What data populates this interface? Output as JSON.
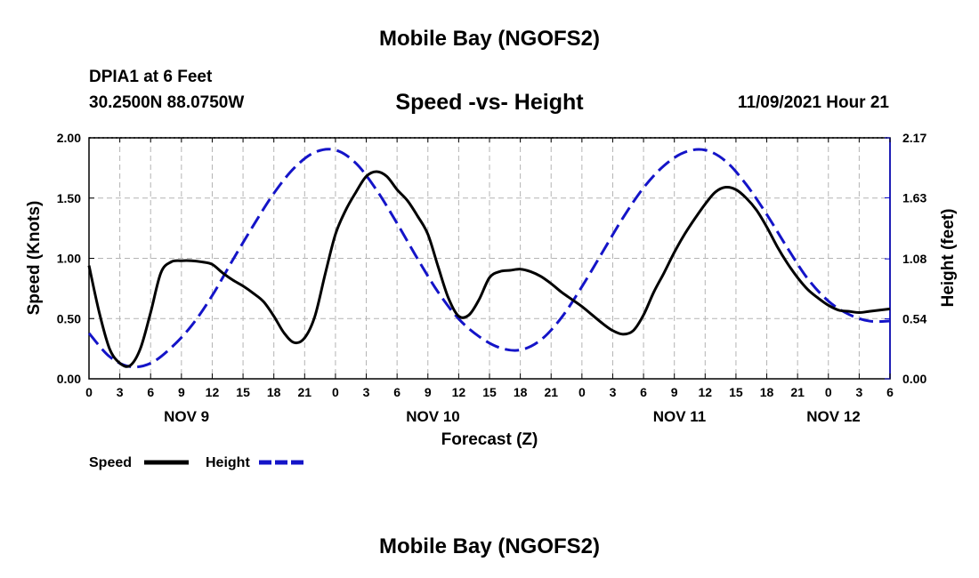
{
  "header": {
    "title": "Mobile Bay (NGOFS2)",
    "station": "DPIA1 at 6 Feet",
    "coords": "30.2500N  88.0750W",
    "timestamp": "11/09/2021 Hour 21",
    "bottom_title": "Mobile Bay (NGOFS2)"
  },
  "chart_data": {
    "type": "line",
    "title": "Speed -vs- Height",
    "xlabel": "Forecast (Z)",
    "ylabel": "Speed (Knots)",
    "y2label": "Height (feet)",
    "xlim": [
      0,
      78
    ],
    "ylim": [
      0,
      2.0
    ],
    "y2lim": [
      0,
      2.17
    ],
    "grid": true,
    "x_tick_values": [
      0,
      3,
      6,
      9,
      12,
      15,
      18,
      21,
      24,
      27,
      30,
      33,
      36,
      39,
      42,
      45,
      48,
      51,
      54,
      57,
      60,
      63,
      66,
      69,
      72,
      75,
      78
    ],
    "x_tick_labels": [
      "0",
      "3",
      "6",
      "9",
      "12",
      "15",
      "18",
      "21",
      "0",
      "3",
      "6",
      "9",
      "12",
      "15",
      "18",
      "21",
      "0",
      "3",
      "6",
      "9",
      "12",
      "15",
      "18",
      "21",
      "0",
      "3",
      "6"
    ],
    "day_labels": [
      {
        "label": "NOV 9",
        "x": 9.5
      },
      {
        "label": "NOV 10",
        "x": 33.5
      },
      {
        "label": "NOV 11",
        "x": 57.5
      },
      {
        "label": "NOV 12",
        "x": 72.5
      }
    ],
    "y_tick_values": [
      0,
      0.5,
      1.0,
      1.5,
      2.0
    ],
    "y_tick_labels": [
      "0.00",
      "0.50",
      "1.00",
      "1.50",
      "2.00"
    ],
    "y2_tick_values": [
      0,
      0.54,
      1.08,
      1.63,
      2.17
    ],
    "y2_tick_labels": [
      "0.00",
      "0.54",
      "1.08",
      "1.63",
      "2.17"
    ],
    "legend_location": "bottom-left",
    "series": [
      {
        "name": "Speed",
        "axis": "left",
        "color": "#000000",
        "style": "solid",
        "x": [
          0,
          1,
          2,
          3,
          4,
          5,
          6,
          7,
          8,
          9,
          10,
          11,
          12,
          13,
          14,
          15,
          16,
          17,
          18,
          19,
          20,
          21,
          22,
          23,
          24,
          25,
          26,
          27,
          28,
          29,
          30,
          31,
          32,
          33,
          34,
          35,
          36,
          37,
          38,
          39,
          40,
          41,
          42,
          43,
          44,
          45,
          46,
          47,
          48,
          49,
          50,
          51,
          52,
          53,
          54,
          55,
          56,
          57,
          58,
          59,
          60,
          61,
          62,
          63,
          64,
          65,
          66,
          67,
          68,
          69,
          70,
          71,
          72,
          73,
          74,
          75,
          76,
          77,
          78
        ],
        "values": [
          0.94,
          0.55,
          0.25,
          0.13,
          0.11,
          0.25,
          0.55,
          0.88,
          0.97,
          0.98,
          0.98,
          0.97,
          0.95,
          0.88,
          0.82,
          0.77,
          0.71,
          0.64,
          0.52,
          0.38,
          0.3,
          0.34,
          0.52,
          0.87,
          1.2,
          1.4,
          1.55,
          1.68,
          1.72,
          1.68,
          1.57,
          1.48,
          1.35,
          1.2,
          0.93,
          0.67,
          0.52,
          0.53,
          0.66,
          0.84,
          0.89,
          0.9,
          0.91,
          0.89,
          0.85,
          0.79,
          0.72,
          0.66,
          0.6,
          0.53,
          0.46,
          0.4,
          0.37,
          0.4,
          0.53,
          0.72,
          0.88,
          1.05,
          1.2,
          1.33,
          1.45,
          1.55,
          1.59,
          1.57,
          1.5,
          1.4,
          1.26,
          1.1,
          0.96,
          0.84,
          0.74,
          0.67,
          0.61,
          0.57,
          0.56,
          0.55,
          0.56,
          0.57,
          0.58
        ]
      },
      {
        "name": "Height",
        "axis": "right",
        "color": "#1414c8",
        "style": "dashed",
        "x": [
          0,
          2,
          4,
          6,
          8,
          10,
          12,
          14,
          16,
          18,
          20,
          22,
          24,
          26,
          28,
          30,
          32,
          34,
          36,
          38,
          40,
          42,
          44,
          46,
          48,
          50,
          52,
          54,
          56,
          58,
          60,
          62,
          64,
          66,
          68,
          70,
          72,
          74,
          76,
          78
        ],
        "values": [
          0.41,
          0.2,
          0.11,
          0.14,
          0.28,
          0.48,
          0.75,
          1.07,
          1.38,
          1.67,
          1.9,
          2.04,
          2.06,
          1.94,
          1.7,
          1.4,
          1.08,
          0.78,
          0.54,
          0.38,
          0.28,
          0.26,
          0.35,
          0.55,
          0.83,
          1.14,
          1.45,
          1.72,
          1.92,
          2.04,
          2.06,
          1.96,
          1.75,
          1.48,
          1.18,
          0.9,
          0.7,
          0.58,
          0.52,
          0.52
        ]
      }
    ]
  }
}
